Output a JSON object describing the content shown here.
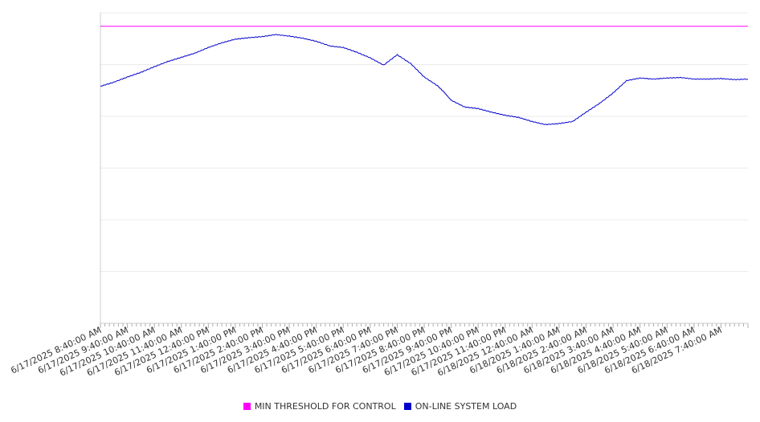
{
  "chart_data": {
    "type": "line",
    "title": "",
    "xlabel": "",
    "ylabel": "",
    "grid": true,
    "legend_position": "bottom",
    "x_tick_labels": [
      "6/17/2025 8:40:00 AM",
      "6/17/2025 9:40:00 AM",
      "6/17/2025 10:40:00 AM",
      "6/17/2025 11:40:00 AM",
      "6/17/2025 12:40:00 PM",
      "6/17/2025 1:40:00 PM",
      "6/17/2025 2:40:00 PM",
      "6/17/2025 3:40:00 PM",
      "6/17/2025 4:40:00 PM",
      "6/17/2025 5:40:00 PM",
      "6/17/2025 6:40:00 PM",
      "6/17/2025 7:40:00 PM",
      "6/17/2025 8:40:00 PM",
      "6/17/2025 9:40:00 PM",
      "6/17/2025 10:40:00 PM",
      "6/17/2025 11:40:00 PM",
      "6/18/2025 12:40:00 AM",
      "6/18/2025 1:40:00 AM",
      "6/18/2025 2:40:00 AM",
      "6/18/2025 3:40:00 AM",
      "6/18/2025 4:40:00 AM",
      "6/18/2025 5:40:00 AM",
      "6/18/2025 6:40:00 AM",
      "6/18/2025 7:40:00 AM"
    ],
    "x_range": [
      "6/17/2025 8:40:00 AM",
      "6/18/2025 8:40:00 AM"
    ],
    "y_range": [
      0,
      6
    ],
    "y_gridlines": 6,
    "series": [
      {
        "name": "MIN THRESHOLD FOR CONTROL",
        "color": "#ff00ff",
        "x_hours": [
          0,
          24
        ],
        "values": [
          5.74,
          5.74
        ]
      },
      {
        "name": "ON-LINE SYSTEM LOAD",
        "color": "#0000cc",
        "x_hours": [
          0,
          0.5,
          1,
          1.5,
          2,
          2.5,
          3,
          3.5,
          4,
          4.5,
          5,
          5.5,
          6,
          6.5,
          7,
          7.5,
          8,
          8.5,
          9,
          9.5,
          10,
          10.5,
          11,
          11.5,
          12,
          12.5,
          12.75,
          13,
          13.5,
          14,
          14.5,
          15,
          15.5,
          16,
          16.5,
          17,
          17.5,
          18,
          18.5,
          19,
          19.5,
          20,
          20.5,
          21,
          21.5,
          22,
          22.5,
          23,
          23.5,
          24
        ],
        "values": [
          4.58,
          4.66,
          4.76,
          4.85,
          4.96,
          5.06,
          5.14,
          5.22,
          5.33,
          5.42,
          5.49,
          5.52,
          5.54,
          5.58,
          5.55,
          5.51,
          5.45,
          5.36,
          5.33,
          5.24,
          5.13,
          4.99,
          5.19,
          5.02,
          4.76,
          4.59,
          4.46,
          4.31,
          4.18,
          4.15,
          4.08,
          4.02,
          3.98,
          3.9,
          3.84,
          3.86,
          3.9,
          4.08,
          4.25,
          4.45,
          4.69,
          4.74,
          4.72,
          4.74,
          4.75,
          4.72,
          4.72,
          4.73,
          4.71,
          4.72
        ]
      }
    ]
  }
}
